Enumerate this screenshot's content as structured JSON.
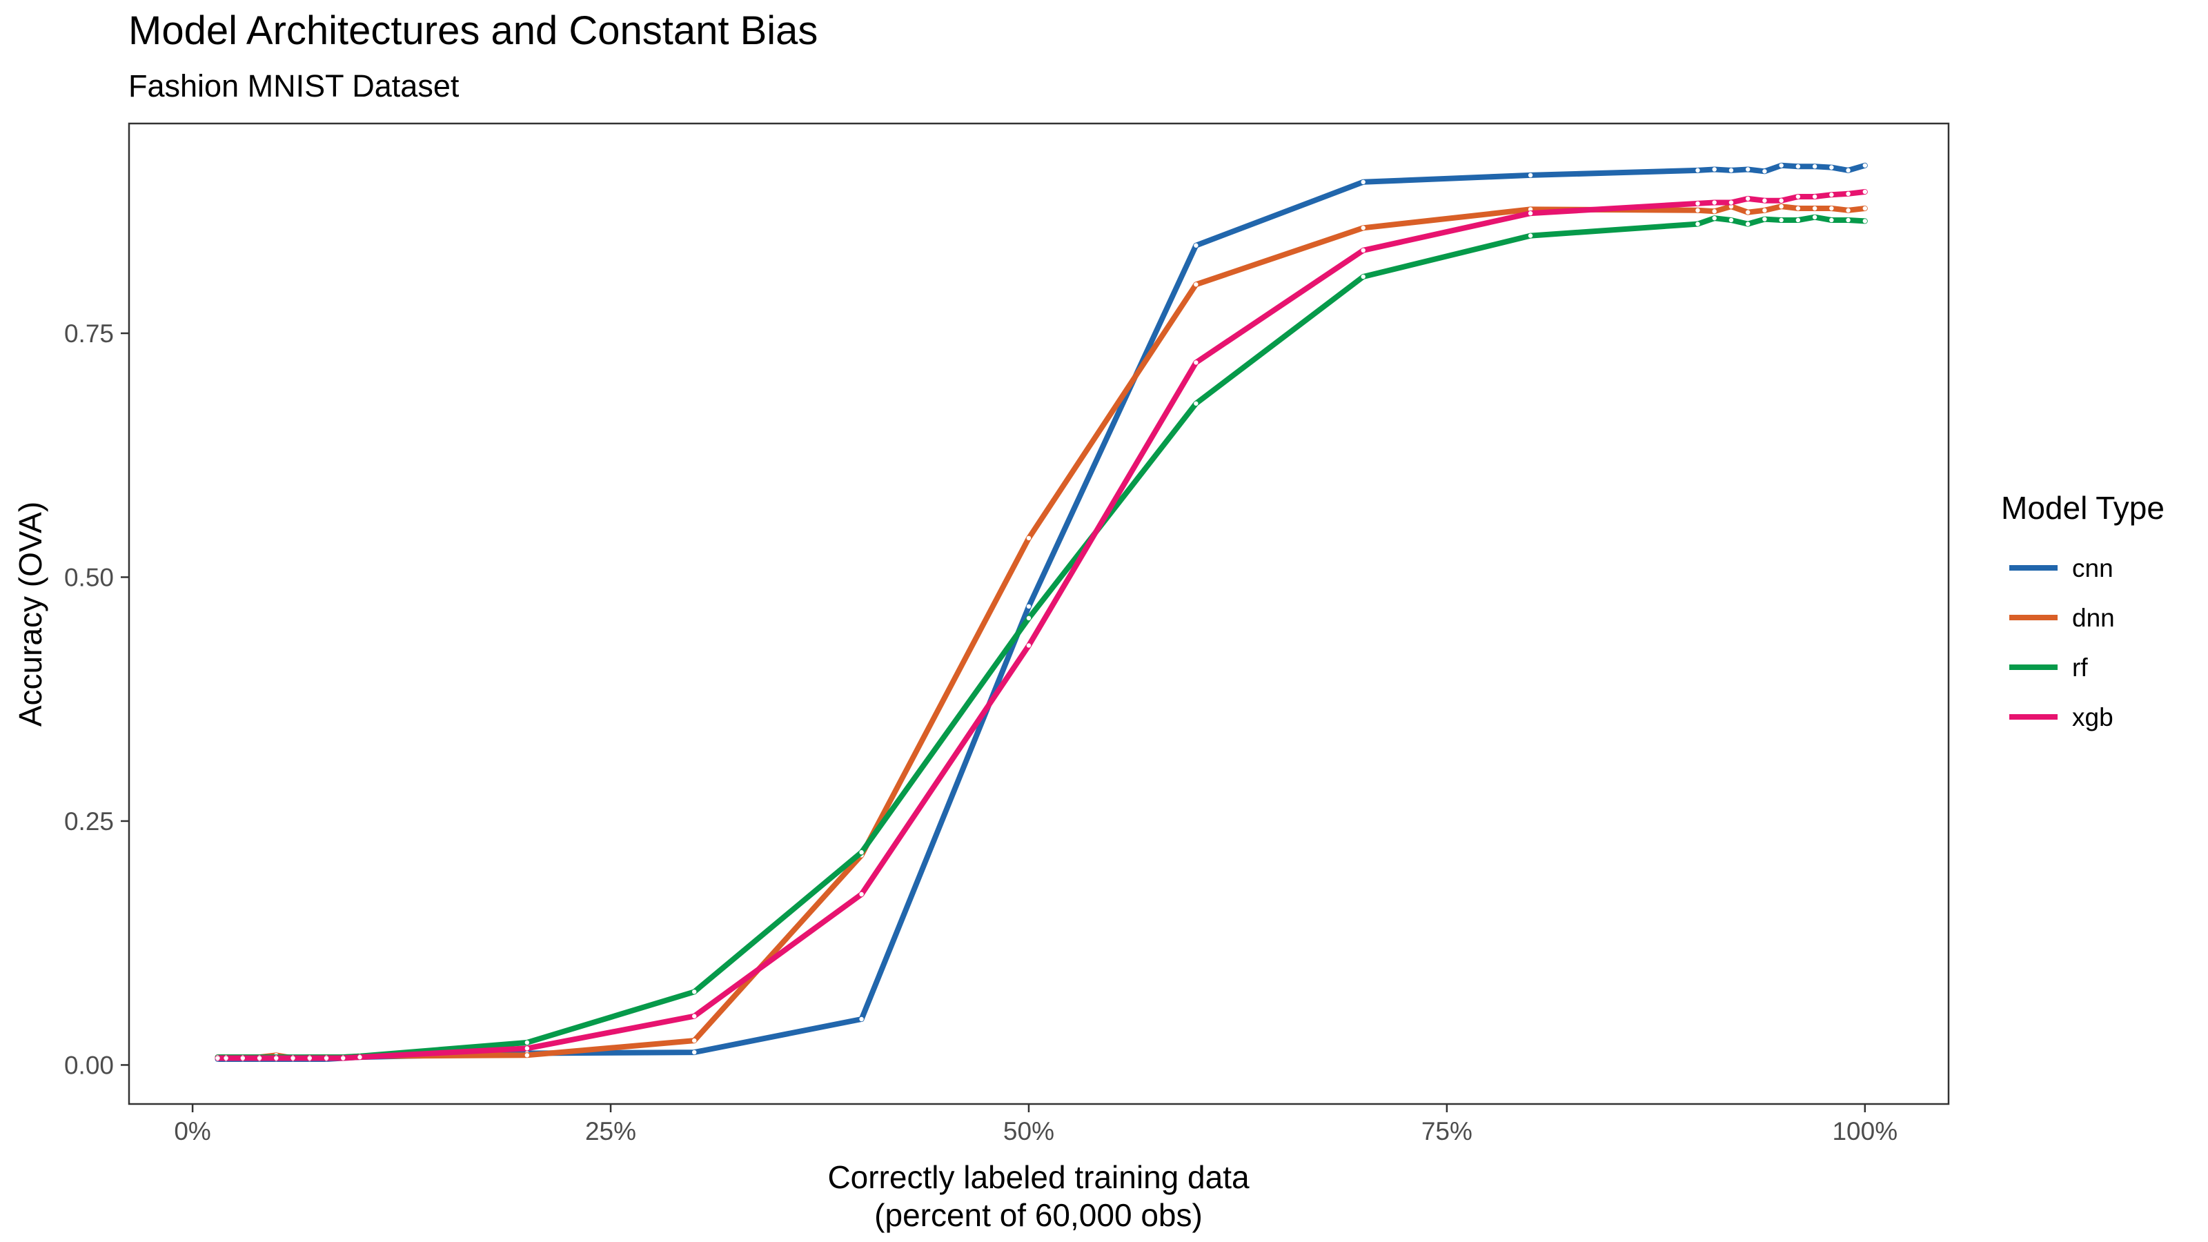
{
  "chart_data": {
    "type": "line",
    "title": "Model Architectures and Constant Bias",
    "subtitle": "Fashion MNIST Dataset",
    "xlabel_line1": "Correctly labeled training data",
    "xlabel_line2": "(percent of 60,000 obs)",
    "ylabel": "Accuracy (OVA)",
    "xlim": [
      -0.038,
      1.05
    ],
    "ylim": [
      -0.04,
      0.965
    ],
    "x_ticks": [
      0,
      0.25,
      0.5,
      0.75,
      1.0
    ],
    "x_tick_labels": [
      "0%",
      "25%",
      "50%",
      "75%",
      "100%"
    ],
    "y_ticks": [
      0,
      0.25,
      0.5,
      0.75
    ],
    "y_tick_labels": [
      "0.00",
      "0.25",
      "0.50",
      "0.75"
    ],
    "grid": false,
    "legend": {
      "title": "Model Type",
      "placement": "right"
    },
    "x": [
      0.015,
      0.02,
      0.03,
      0.04,
      0.05,
      0.06,
      0.07,
      0.08,
      0.09,
      0.1,
      0.2,
      0.3,
      0.4,
      0.5,
      0.6,
      0.7,
      0.8,
      0.9,
      0.91,
      0.92,
      0.93,
      0.94,
      0.95,
      0.96,
      0.97,
      0.98,
      0.99,
      1.0
    ],
    "series": [
      {
        "name": "cnn",
        "color": "#2166ac",
        "values": [
          0.006,
          0.006,
          0.006,
          0.006,
          0.006,
          0.006,
          0.006,
          0.006,
          0.007,
          0.008,
          0.012,
          0.013,
          0.047,
          0.47,
          0.84,
          0.905,
          0.912,
          0.917,
          0.918,
          0.917,
          0.918,
          0.916,
          0.922,
          0.921,
          0.921,
          0.92,
          0.917,
          0.922
        ]
      },
      {
        "name": "dnn",
        "color": "#d95f27",
        "values": [
          0.008,
          0.008,
          0.008,
          0.008,
          0.01,
          0.007,
          0.008,
          0.008,
          0.008,
          0.009,
          0.01,
          0.025,
          0.215,
          0.54,
          0.8,
          0.858,
          0.877,
          0.876,
          0.875,
          0.88,
          0.874,
          0.876,
          0.88,
          0.878,
          0.878,
          0.878,
          0.876,
          0.878
        ]
      },
      {
        "name": "rf",
        "color": "#069a4a",
        "values": [
          0.008,
          0.008,
          0.008,
          0.008,
          0.008,
          0.008,
          0.008,
          0.008,
          0.008,
          0.009,
          0.023,
          0.075,
          0.218,
          0.458,
          0.678,
          0.808,
          0.85,
          0.862,
          0.868,
          0.866,
          0.862,
          0.867,
          0.866,
          0.866,
          0.869,
          0.866,
          0.866,
          0.865
        ]
      },
      {
        "name": "xgb",
        "color": "#e7136f",
        "values": [
          0.007,
          0.007,
          0.007,
          0.007,
          0.007,
          0.007,
          0.007,
          0.007,
          0.007,
          0.008,
          0.017,
          0.05,
          0.175,
          0.43,
          0.72,
          0.835,
          0.873,
          0.883,
          0.884,
          0.884,
          0.888,
          0.886,
          0.886,
          0.89,
          0.89,
          0.892,
          0.893,
          0.895
        ]
      }
    ]
  }
}
